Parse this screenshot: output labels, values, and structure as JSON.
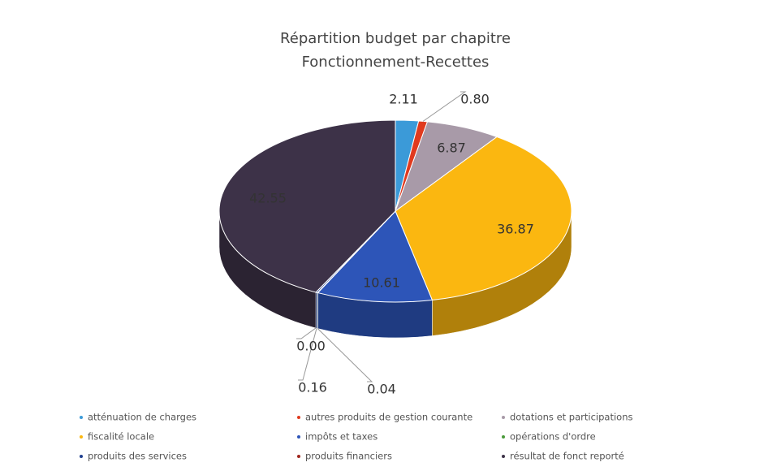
{
  "chart_data": {
    "type": "pie3d",
    "title": "Répartition budget par chapitre",
    "subtitle": "Fonctionnement-Recettes",
    "categories": [
      "atténuation de charges",
      "autres produits de gestion courante",
      "dotations et participations",
      "fiscalité locale",
      "impôts et taxes",
      "opérations d'ordre",
      "produits des services",
      "produits financiers",
      "résultat de fonct reporté"
    ],
    "values": [
      2.11,
      0.8,
      6.87,
      36.87,
      10.61,
      0.04,
      0.16,
      0,
      42.55
    ],
    "value_labels": [
      "2.11",
      "0.80",
      "6.87",
      "36.87",
      "10.61",
      "0.04",
      "0.16",
      "0.00",
      "42.55"
    ],
    "colors": [
      "#3b9ad8",
      "#e03a1e",
      "#a89aa8",
      "#fbb710",
      "#2d55b8",
      "#4a9a3a",
      "#1f3f8f",
      "#a0261e",
      "#3d3248"
    ],
    "legend": "bottom"
  }
}
